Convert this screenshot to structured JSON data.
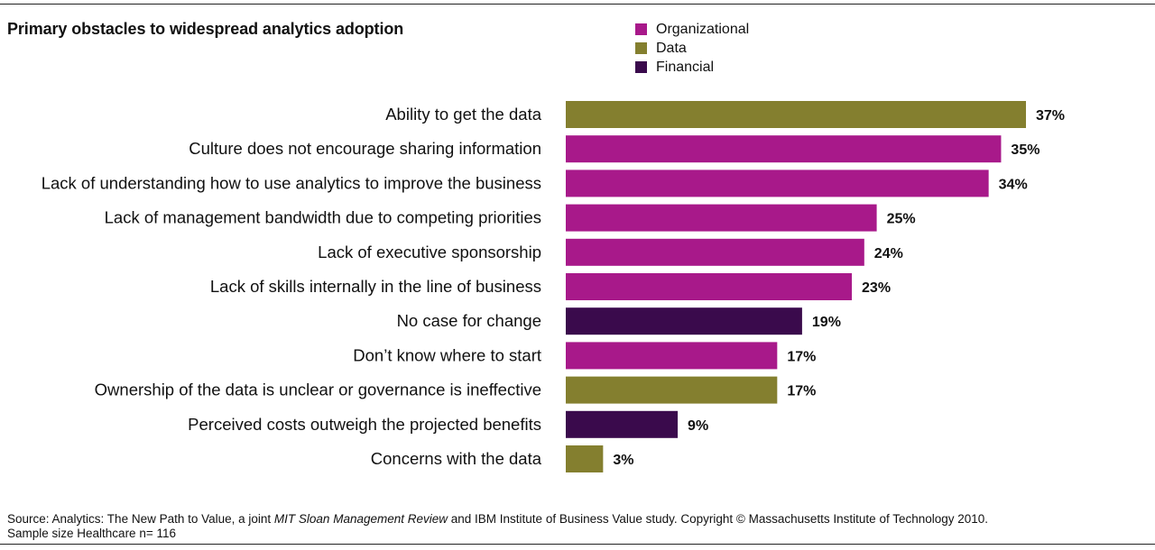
{
  "chart_data": {
    "type": "bar",
    "orientation": "horizontal",
    "title": "Primary obstacles to widespread analytics adoption",
    "categories": [
      "Ability to get the data",
      "Culture does not encourage sharing information",
      "Lack of understanding how to use analytics to improve the business",
      "Lack of management bandwidth due to competing priorities",
      "Lack of executive sponsorship",
      "Lack of skills internally in the line of business",
      "No case for change",
      "Don’t know where to start",
      "Ownership of the data is unclear or governance is ineffective",
      "Perceived costs outweigh the projected benefits",
      "Concerns with the data"
    ],
    "values": [
      37,
      35,
      34,
      25,
      24,
      23,
      19,
      17,
      17,
      9,
      3
    ],
    "value_labels": [
      "37%",
      "35%",
      "34%",
      "25%",
      "24%",
      "23%",
      "19%",
      "17%",
      "17%",
      "9%",
      "3%"
    ],
    "groups": [
      "Data",
      "Organizational",
      "Organizational",
      "Organizational",
      "Organizational",
      "Organizational",
      "Financial",
      "Organizational",
      "Data",
      "Financial",
      "Data"
    ],
    "legend": [
      {
        "name": "Organizational",
        "color": "#a8198a"
      },
      {
        "name": "Data",
        "color": "#847f2f"
      },
      {
        "name": "Financial",
        "color": "#3a0a4c"
      }
    ],
    "legend_position": "top-right",
    "xlim": [
      0,
      37
    ],
    "grid": false
  },
  "footer": {
    "source_prefix": "Source: Analytics: The New Path to Value, a joint ",
    "source_journal": "MIT Sloan Management Review",
    "source_suffix": " and IBM Institute of Business Value study. Copyright © Massachusetts Institute of Technology 2010.",
    "sample": "Sample size Healthcare n= 116"
  }
}
